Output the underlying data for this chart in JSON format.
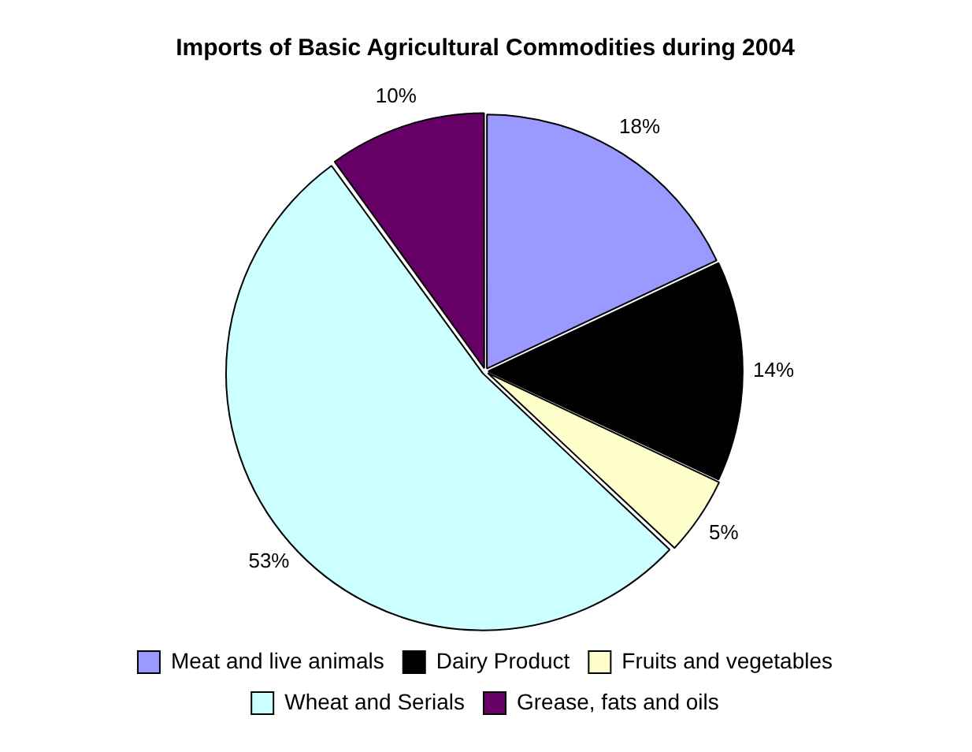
{
  "chart_data": {
    "type": "pie",
    "title": "Imports of Basic Agricultural Commodities during 2004",
    "categories": [
      "Meat and live animals",
      "Dairy Product",
      "Fruits and vegetables",
      "Wheat and Serials",
      "Grease, fats and oils"
    ],
    "values": [
      18,
      14,
      5,
      53,
      10
    ],
    "colors": [
      "#9999ff",
      "#000000",
      "#ffffcc",
      "#ccffff",
      "#660066"
    ],
    "value_labels": [
      "18%",
      "14%",
      "5%",
      "53%",
      "10%"
    ],
    "legend": "bottom"
  }
}
